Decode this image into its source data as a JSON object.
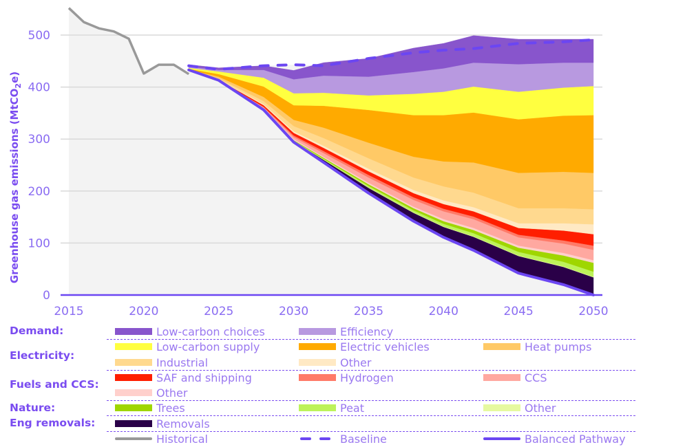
{
  "chart_data": {
    "type": "area",
    "title": "",
    "xlabel": "",
    "ylabel": "Greenhouse gas emissions (MtCO2e)",
    "ylabel_parts": {
      "pre": "Greenhouse gas emissions (MtCO",
      "sub": "2",
      "post": "e)"
    },
    "xlim": [
      2015,
      2050
    ],
    "ylim": [
      0,
      560
    ],
    "x_ticks": [
      2015,
      2020,
      2025,
      2030,
      2035,
      2040,
      2045,
      2050
    ],
    "y_ticks": [
      0,
      100,
      200,
      300,
      400,
      500
    ],
    "grid": "horizontal",
    "legend_position": "bottom",
    "historical": {
      "name": "Historical",
      "color": "#999999",
      "x": [
        2015,
        2016,
        2017,
        2018,
        2019,
        2020,
        2021,
        2022,
        2023
      ],
      "y": [
        552,
        525,
        513,
        507,
        493,
        426,
        443,
        443,
        425
      ]
    },
    "x": [
      2023,
      2025,
      2028,
      2030,
      2032,
      2035,
      2038,
      2040,
      2042,
      2045,
      2048,
      2050
    ],
    "baseline": {
      "name": "Baseline",
      "color": "#6b46f2",
      "y": [
        441,
        434,
        441,
        443,
        441,
        455,
        466,
        471,
        474,
        484,
        487,
        491
      ]
    },
    "balanced_pathway": {
      "name": "Balanced Pathway",
      "color": "#6b46f2",
      "y": [
        433,
        413,
        356,
        294,
        255,
        196,
        142,
        111,
        86,
        42,
        20,
        0
      ]
    },
    "series": [
      {
        "group": "Eng removals",
        "name": "Removals",
        "color": "#2a0048",
        "values": [
          0,
          0,
          1,
          2,
          5,
          10,
          16,
          20,
          26,
          33,
          34,
          34
        ]
      },
      {
        "group": "Nature",
        "name": "Other",
        "color": "#e6f9a0",
        "values": [
          0,
          0,
          0,
          0,
          0,
          1,
          1,
          1,
          1,
          1,
          1,
          1
        ]
      },
      {
        "group": "Nature",
        "name": "Peat",
        "color": "#bdf25a",
        "values": [
          0,
          0,
          0,
          1,
          2,
          3,
          4,
          5,
          6,
          7,
          9,
          10
        ]
      },
      {
        "group": "Nature",
        "name": "Trees",
        "color": "#9fd600",
        "values": [
          0,
          0,
          1,
          1,
          2,
          3,
          4,
          5,
          6,
          8,
          12,
          17
        ]
      },
      {
        "group": "Fuels and CCS",
        "name": "Other",
        "color": "#ffd0cc",
        "values": [
          0,
          0,
          1,
          2,
          2,
          3,
          3,
          4,
          4,
          4,
          5,
          5
        ]
      },
      {
        "group": "Fuels and CCS",
        "name": "CCS",
        "color": "#ffa8a0",
        "values": [
          0,
          0,
          2,
          4,
          7,
          10,
          13,
          15,
          17,
          16,
          18,
          20
        ]
      },
      {
        "group": "Fuels and CCS",
        "name": "Hydrogen",
        "color": "#ff7a68",
        "values": [
          0,
          0,
          1,
          3,
          4,
          5,
          5,
          5,
          5,
          5,
          6,
          8
        ]
      },
      {
        "group": "Fuels and CCS",
        "name": "SAF and shipping",
        "color": "#ff1e00",
        "values": [
          0,
          1,
          3,
          5,
          6,
          7,
          8,
          9,
          10,
          13,
          19,
          22
        ]
      },
      {
        "group": "Electricity",
        "name": "Other",
        "color": "#ffe9c4",
        "values": [
          0,
          1,
          2,
          3,
          4,
          5,
          6,
          7,
          8,
          9,
          14,
          19
        ]
      },
      {
        "group": "Electricity",
        "name": "Industrial",
        "color": "#ffd98f",
        "values": [
          0,
          2,
          6,
          10,
          15,
          20,
          24,
          27,
          28,
          29,
          29,
          29
        ]
      },
      {
        "group": "Electricity",
        "name": "Heat pumps",
        "color": "#ffc966",
        "values": [
          1,
          3,
          8,
          12,
          20,
          30,
          40,
          48,
          58,
          68,
          70,
          70
        ]
      },
      {
        "group": "Electricity",
        "name": "Electric vehicles",
        "color": "#ffaa00",
        "values": [
          1,
          5,
          20,
          28,
          42,
          63,
          80,
          89,
          96,
          103,
          108,
          111
        ]
      },
      {
        "group": "Electricity",
        "name": "Low-carbon supply",
        "color": "#ffff40",
        "values": [
          2,
          5,
          17,
          23,
          25,
          28,
          41,
          45,
          50,
          53,
          54,
          56
        ]
      },
      {
        "group": "Demand",
        "name": "Efficiency",
        "color": "#b899e0",
        "values": [
          2,
          3,
          15,
          27,
          33,
          36,
          42,
          45,
          46,
          53,
          48,
          45
        ]
      },
      {
        "group": "Demand",
        "name": "Low-carbon choices",
        "color": "#8855cc",
        "values": [
          4,
          4,
          8,
          17,
          25,
          35,
          46,
          48,
          52,
          48,
          45,
          45
        ]
      }
    ]
  },
  "legend": {
    "groups": [
      {
        "label": "Demand:"
      },
      {
        "label": "Electricity:"
      },
      {
        "label": "Fuels and CCS:"
      },
      {
        "label": "Nature:"
      },
      {
        "label": "Eng removals:"
      }
    ],
    "items": [
      {
        "label": "Low-carbon choices",
        "color": "#8855cc"
      },
      {
        "label": "Efficiency",
        "color": "#b899e0"
      },
      {
        "label": "Low-carbon supply",
        "color": "#ffff40"
      },
      {
        "label": "Electric vehicles",
        "color": "#ffaa00"
      },
      {
        "label": "Heat pumps",
        "color": "#ffc966"
      },
      {
        "label": "Industrial",
        "color": "#ffd98f"
      },
      {
        "label": "Other",
        "color": "#ffe9c4"
      },
      {
        "label": "SAF and shipping",
        "color": "#ff1e00"
      },
      {
        "label": "Hydrogen",
        "color": "#ff7a68"
      },
      {
        "label": "CCS",
        "color": "#ffa8a0"
      },
      {
        "label": "Other",
        "color": "#ffd0cc"
      },
      {
        "label": "Trees",
        "color": "#9fd600"
      },
      {
        "label": "Peat",
        "color": "#bdf25a"
      },
      {
        "label": "Other",
        "color": "#e6f9a0"
      },
      {
        "label": "Removals",
        "color": "#2a0048"
      },
      {
        "label": "Historical",
        "color": "#999999"
      },
      {
        "label": "Baseline",
        "color": "#6b46f2"
      },
      {
        "label": "Balanced Pathway",
        "color": "#6b46f2"
      }
    ]
  }
}
